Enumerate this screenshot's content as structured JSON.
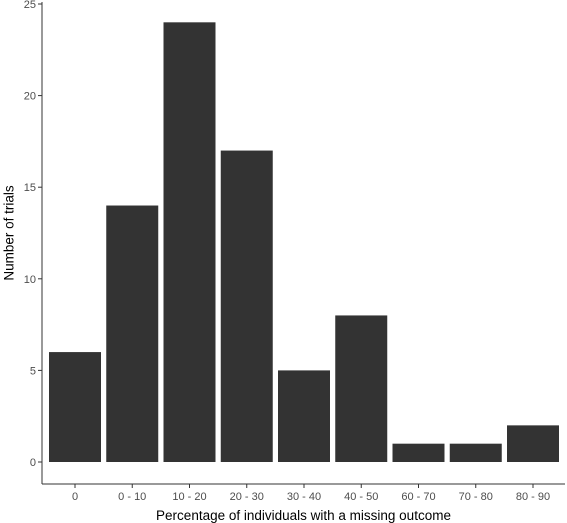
{
  "chart_data": {
    "type": "bar",
    "categories": [
      "0",
      "0 - 10",
      "10 - 20",
      "20 - 30",
      "30 - 40",
      "40 - 50",
      "60 - 70",
      "70 - 80",
      "80 - 90"
    ],
    "values": [
      6,
      14,
      24,
      17,
      5,
      8,
      1,
      1,
      2
    ],
    "xlabel": "Percentage of individuals with a missing outcome",
    "ylabel": "Number of trials",
    "ylim": [
      0,
      25
    ],
    "yticks": [
      0,
      5,
      10,
      15,
      20,
      25
    ],
    "grid": false,
    "colors": {
      "bar": "#333333",
      "axis": "#333333",
      "tick_label": "#4d4d4d"
    }
  }
}
